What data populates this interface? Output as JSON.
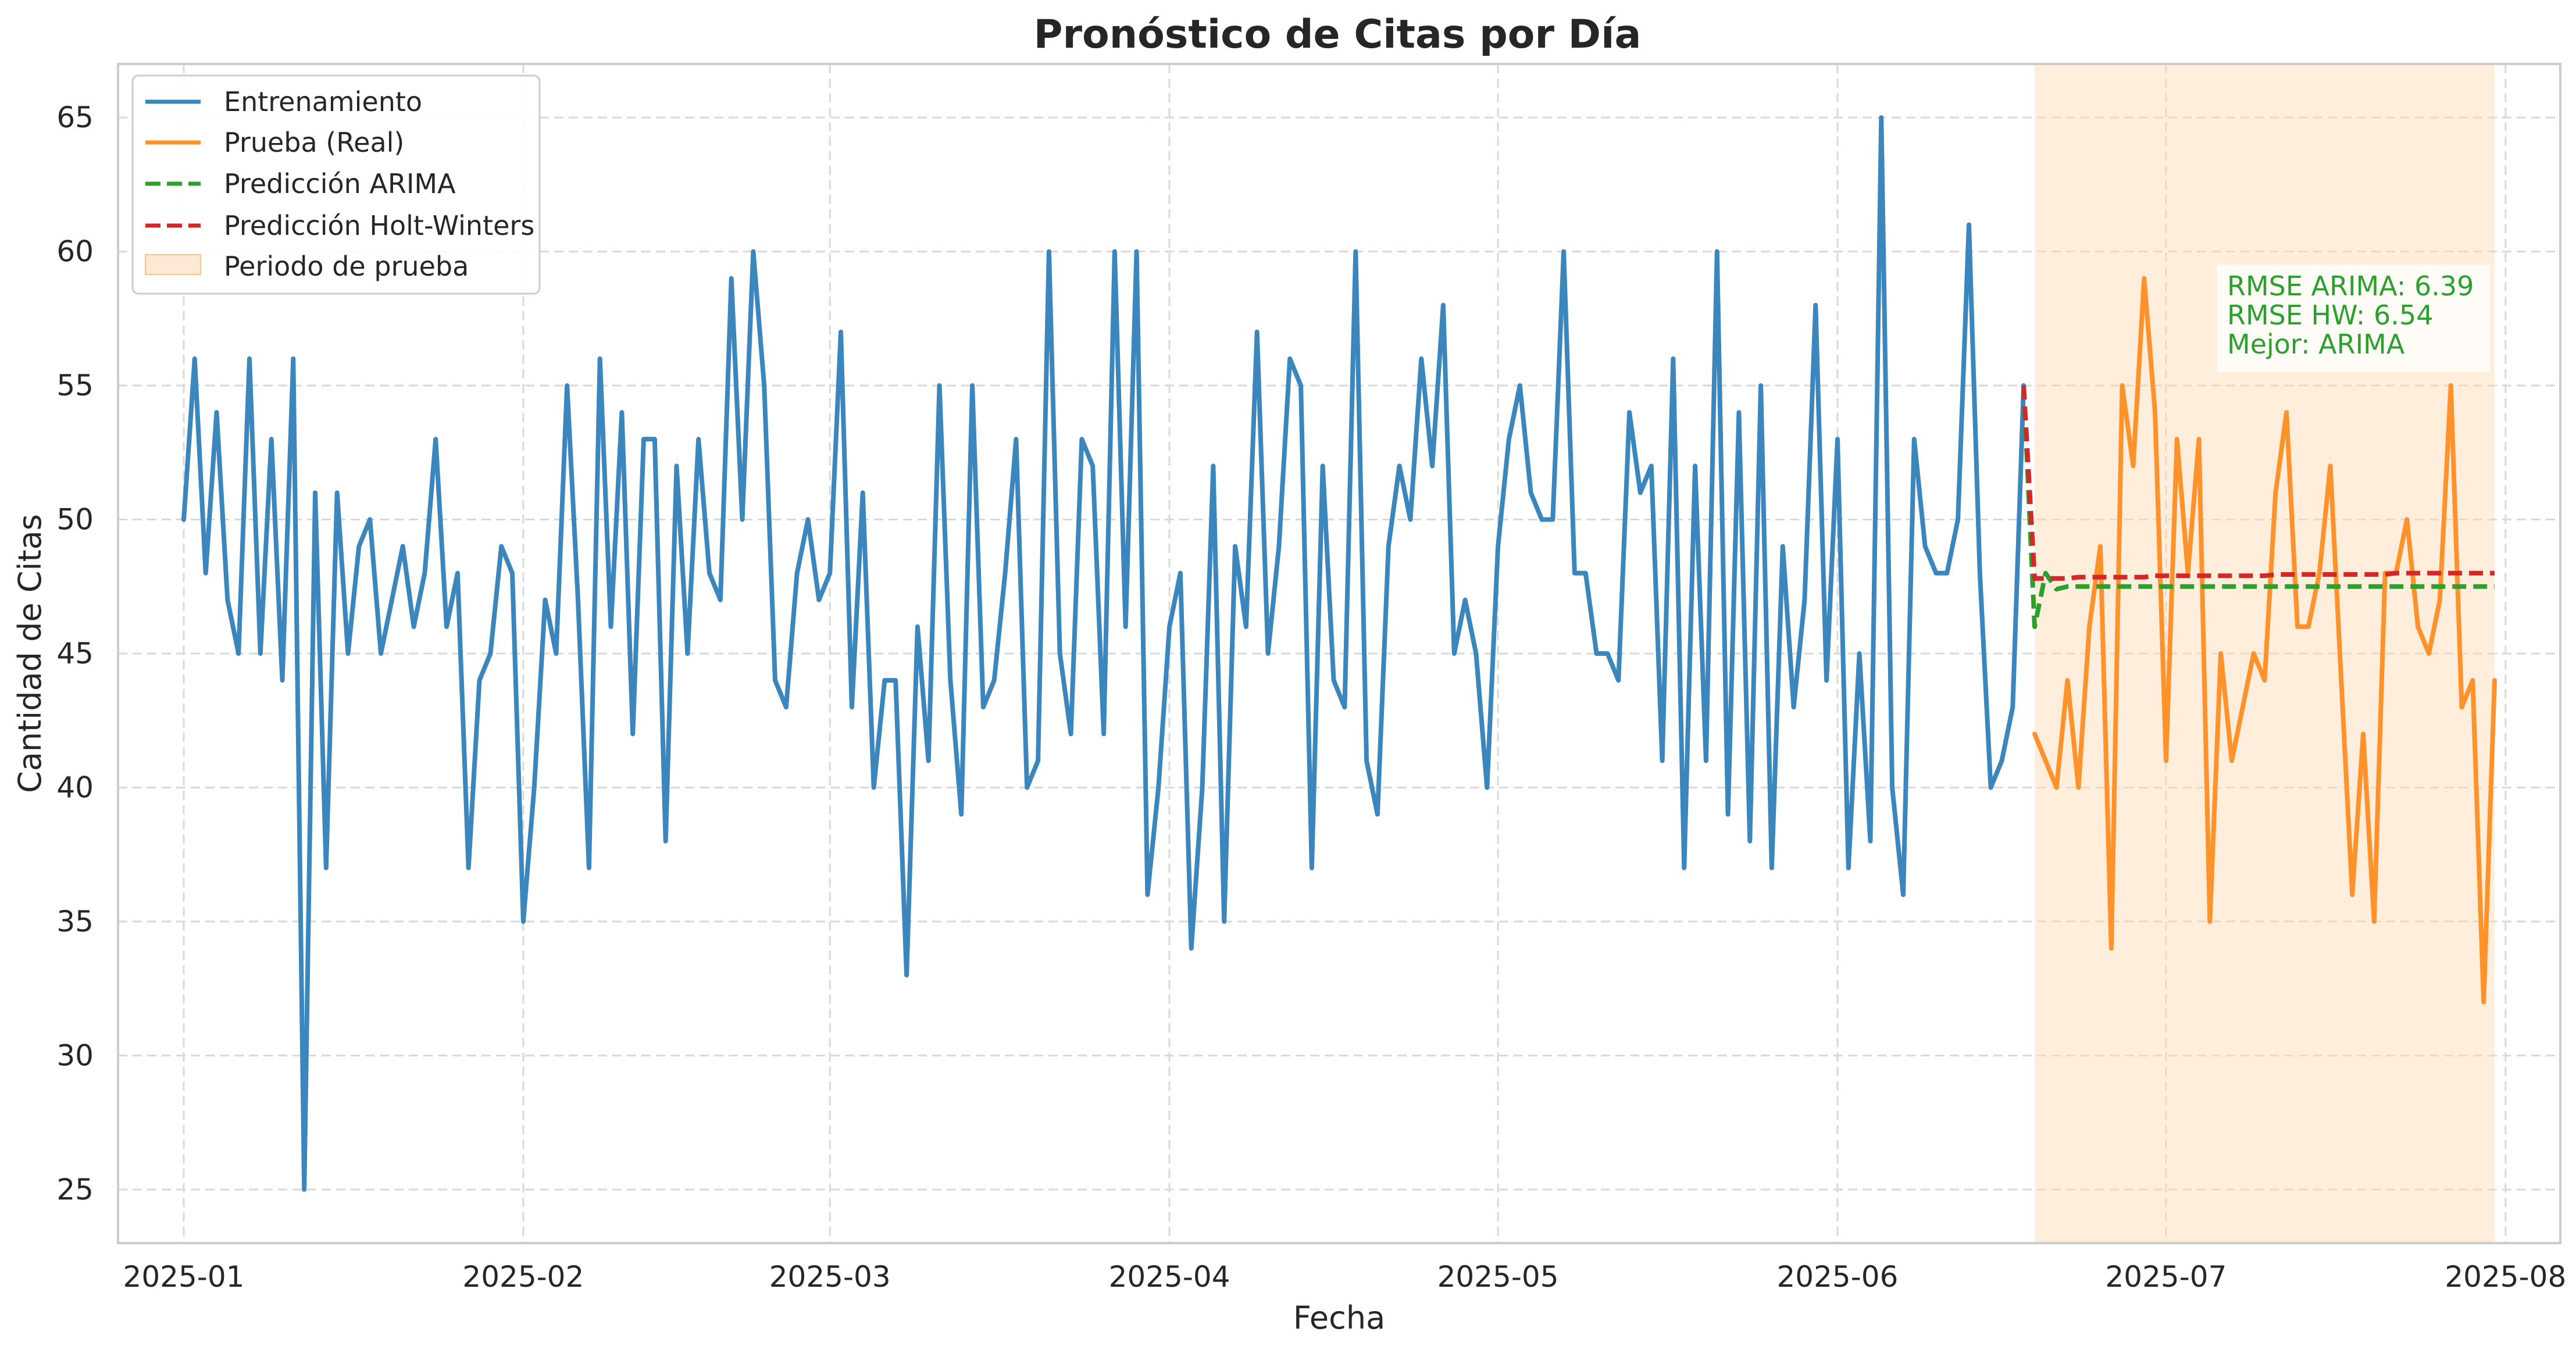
{
  "chart_data": {
    "type": "line",
    "title": "Pronóstico de Citas por Día",
    "xlabel": "Fecha",
    "ylabel": "Cantidad de Citas",
    "x_tick_labels": [
      "2025-01",
      "2025-02",
      "2025-03",
      "2025-04",
      "2025-05",
      "2025-06",
      "2025-07",
      "2025-08"
    ],
    "x_tick_dates": [
      "2025-01-01",
      "2025-02-01",
      "2025-03-01",
      "2025-04-01",
      "2025-05-01",
      "2025-06-01",
      "2025-07-01",
      "2025-08-01"
    ],
    "y_ticks": [
      25,
      30,
      35,
      40,
      45,
      50,
      55,
      60,
      65
    ],
    "xlim": [
      "2024-12-26",
      "2025-08-06"
    ],
    "ylim": [
      23,
      67
    ],
    "grid": true,
    "legend_position": "top-left",
    "series": [
      {
        "name": "Entrenamiento",
        "style": "solid",
        "color": "#3a86bd",
        "start_date": "2025-01-01",
        "values": [
          50,
          56,
          48,
          54,
          47,
          45,
          56,
          45,
          53,
          44,
          56,
          25,
          51,
          37,
          51,
          45,
          49,
          50,
          45,
          47,
          49,
          46,
          48,
          53,
          46,
          48,
          37,
          44,
          45,
          49,
          48,
          35,
          40,
          47,
          45,
          55,
          47,
          37,
          56,
          46,
          54,
          42,
          53,
          53,
          38,
          52,
          45,
          53,
          48,
          47,
          59,
          50,
          60,
          55,
          44,
          43,
          48,
          50,
          47,
          48,
          57,
          43,
          51,
          40,
          44,
          44,
          33,
          46,
          41,
          55,
          44,
          39,
          55,
          43,
          44,
          48,
          53,
          40,
          41,
          60,
          45,
          42,
          53,
          52,
          42,
          60,
          46,
          60,
          36,
          40,
          46,
          48,
          34,
          40,
          52,
          35,
          49,
          46,
          57,
          45,
          49,
          56,
          55,
          37,
          52,
          44,
          43,
          60,
          41,
          39,
          49,
          52,
          50,
          56,
          52,
          58,
          45,
          47,
          45,
          40,
          49,
          53,
          55,
          51,
          50,
          50,
          60,
          48,
          48,
          45,
          45,
          44,
          54,
          51,
          52,
          41,
          56,
          37,
          52,
          41,
          60,
          39,
          54,
          38,
          55,
          37,
          49,
          43,
          47,
          58,
          44,
          53,
          37,
          45,
          38,
          65,
          40,
          36,
          53,
          49,
          48,
          48,
          50,
          61,
          48,
          40,
          41,
          43,
          55
        ]
      },
      {
        "name": "Prueba (Real)",
        "style": "solid",
        "color": "#ff922b",
        "start_date": "2025-06-19",
        "values": [
          42,
          41,
          40,
          44,
          40,
          46,
          49,
          34,
          55,
          52,
          59,
          54,
          41,
          53,
          48,
          53,
          35,
          45,
          41,
          43,
          45,
          44,
          51,
          54,
          46,
          46,
          48,
          52,
          44,
          36,
          42,
          35,
          48,
          48,
          50,
          46,
          45,
          47,
          55,
          43,
          44,
          32,
          44
        ]
      },
      {
        "name": "Predicción ARIMA",
        "style": "dashed",
        "color": "#2ca02c",
        "start_date": "2025-06-18",
        "values": [
          55,
          46,
          48,
          47.4,
          47.5,
          47.5,
          47.5,
          47.5,
          47.5,
          47.5,
          47.5,
          47.5,
          47.5,
          47.5,
          47.5,
          47.5,
          47.5,
          47.5,
          47.5,
          47.5,
          47.5,
          47.5,
          47.5,
          47.5,
          47.5,
          47.5,
          47.5,
          47.5,
          47.5,
          47.5,
          47.5,
          47.5,
          47.5,
          47.5,
          47.5,
          47.5,
          47.5,
          47.5,
          47.5,
          47.5,
          47.5,
          47.5,
          47.5,
          47.5
        ]
      },
      {
        "name": "Predicción Holt-Winters",
        "style": "dashed",
        "color": "#d62728",
        "start_date": "2025-06-18",
        "values": [
          55,
          47.8,
          47.8,
          47.8,
          47.8,
          47.85,
          47.85,
          47.85,
          47.85,
          47.85,
          47.85,
          47.85,
          47.9,
          47.9,
          47.9,
          47.9,
          47.9,
          47.9,
          47.9,
          47.9,
          47.9,
          47.9,
          47.9,
          47.95,
          47.95,
          47.95,
          47.95,
          47.95,
          47.95,
          47.95,
          47.95,
          47.95,
          47.95,
          47.95,
          48,
          48,
          48,
          48,
          48,
          48,
          48,
          48,
          48,
          48
        ]
      }
    ],
    "shaded_region": {
      "name": "Periodo de prueba",
      "start": "2025-06-19",
      "end": "2025-07-31",
      "color": "#fdd9b0"
    },
    "annotation": [
      "RMSE ARIMA: 6.39",
      "RMSE HW: 6.54",
      "Mejor: ARIMA"
    ]
  }
}
